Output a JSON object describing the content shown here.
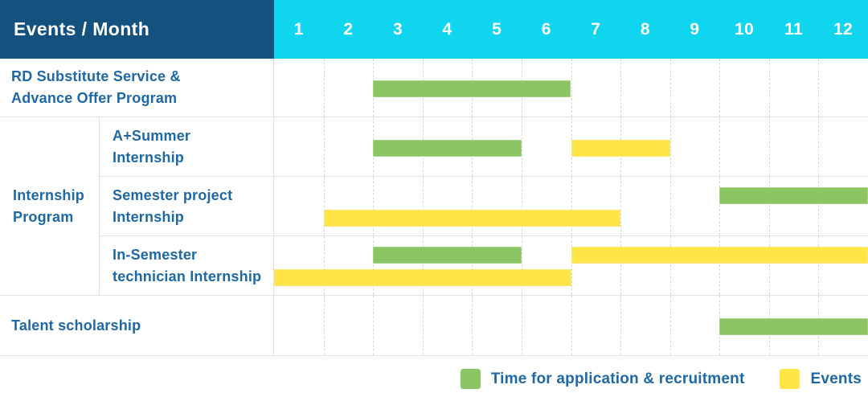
{
  "header": {
    "corner_label": "Events / Month",
    "months": [
      "1",
      "2",
      "3",
      "4",
      "5",
      "6",
      "7",
      "8",
      "9",
      "10",
      "11",
      "12"
    ]
  },
  "colors": {
    "header_bg": "#15517E",
    "months_bg": "#0FD6EE",
    "label_text": "#1D68A7",
    "grid_solid": "#E2E2E2",
    "grid_dashed": "#D9D9D9",
    "application": "#8CC564",
    "application_border": "#A6D389",
    "event": "#FFE547",
    "event_border": "#F9E878"
  },
  "legend": {
    "items": [
      {
        "series": "application",
        "label": "Time for application & recruitment"
      },
      {
        "series": "event",
        "label": "Events"
      }
    ]
  },
  "chart_data": {
    "type": "gantt",
    "title": "Events / Month",
    "x_axis": {
      "unit": "month",
      "range": [
        1,
        12
      ],
      "ticks": [
        "1",
        "2",
        "3",
        "4",
        "5",
        "6",
        "7",
        "8",
        "9",
        "10",
        "11",
        "12"
      ]
    },
    "series_legend": {
      "application": "Time for application & recruitment",
      "event": "Events"
    },
    "rows": [
      {
        "id": "rd-substitute",
        "group": null,
        "label": "RD Substitute Service & Advance Offer Program",
        "label_lines": [
          "RD Substitute Service &",
          "Advance Offer Program"
        ],
        "lanes": 1,
        "bars": [
          {
            "series": "application",
            "start_month": 3,
            "end_month": 6,
            "lane": 1
          }
        ]
      },
      {
        "id": "a-plus-summer-internship",
        "group": "Internship Program",
        "label": "A+Summer Internship",
        "label_lines": [
          "A+Summer",
          "Internship"
        ],
        "lanes": 1,
        "bars": [
          {
            "series": "application",
            "start_month": 3,
            "end_month": 5,
            "lane": 1
          },
          {
            "series": "event",
            "start_month": 7,
            "end_month": 8,
            "lane": 1
          }
        ]
      },
      {
        "id": "semester-project-internship",
        "group": "Internship Program",
        "label": "Semester project Internship",
        "label_lines": [
          "Semester project",
          "Internship"
        ],
        "lanes": 2,
        "bars": [
          {
            "series": "application",
            "start_month": 10,
            "end_month": 12,
            "lane": 1
          },
          {
            "series": "event",
            "start_month": 2,
            "end_month": 7,
            "lane": 2
          }
        ]
      },
      {
        "id": "in-semester-technician-internship",
        "group": "Internship Program",
        "label": "In-Semester technician Internship",
        "label_lines": [
          "In-Semester",
          "technician Internship"
        ],
        "lanes": 2,
        "bars": [
          {
            "series": "application",
            "start_month": 3,
            "end_month": 5,
            "lane": 1
          },
          {
            "series": "event",
            "start_month": 7,
            "end_month": 12,
            "lane": 1
          },
          {
            "series": "event",
            "start_month": 1,
            "end_month": 6,
            "lane": 2
          }
        ]
      },
      {
        "id": "talent-scholarship",
        "group": null,
        "label": "Talent scholarship",
        "label_lines": [
          "Talent scholarship"
        ],
        "lanes": 1,
        "bars": [
          {
            "series": "application",
            "start_month": 10,
            "end_month": 12,
            "lane": 1
          }
        ]
      }
    ]
  }
}
